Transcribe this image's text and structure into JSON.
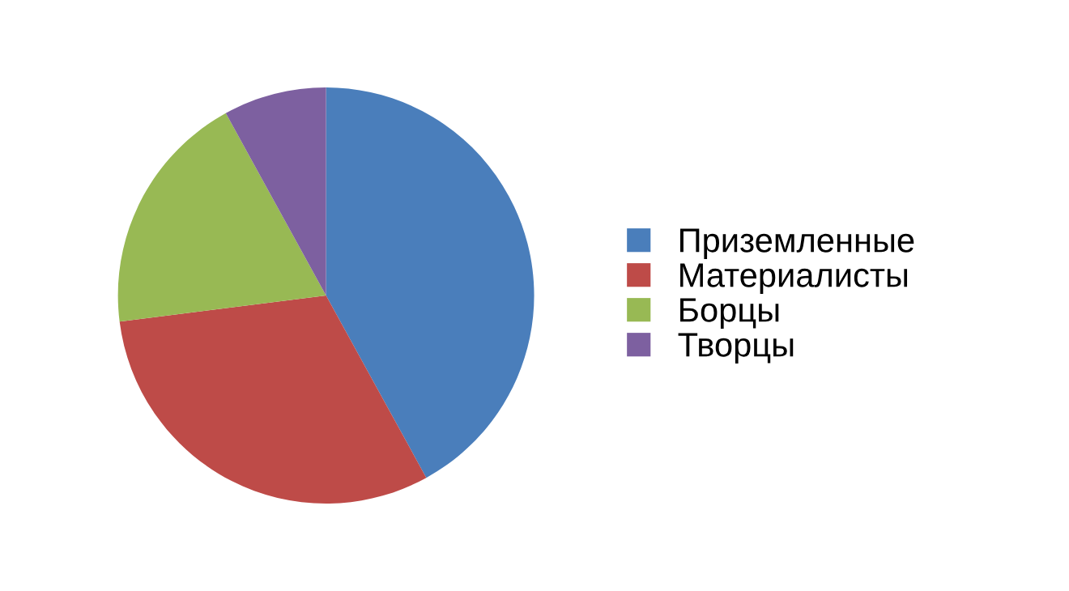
{
  "chart_data": {
    "type": "pie",
    "categories": [
      "Приземленные",
      "Материалисты",
      "Борцы",
      "Творцы"
    ],
    "values": [
      42,
      31,
      19,
      8
    ],
    "colors": [
      "#4a7ebb",
      "#be4b48",
      "#98b954",
      "#7d60a0"
    ],
    "legend": "right"
  }
}
